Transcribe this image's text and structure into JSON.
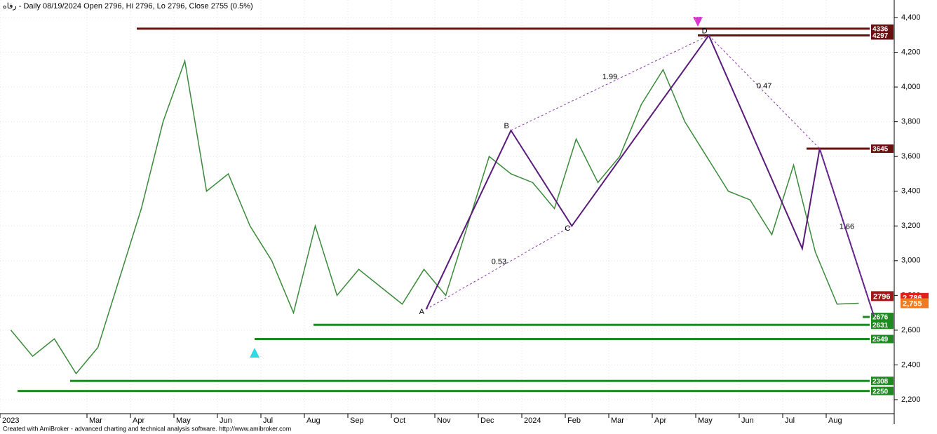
{
  "chart_data": {
    "type": "line",
    "title": "رفاه - Daily 08/19/2024 Open 2796, Hi 2796, Lo 2796, Close 2755 (0.5%)",
    "footer": "Created with AmiBroker - advanced charting and technical analysis software. http://www.amibroker.com",
    "categories": [
      "2023",
      null,
      null,
      null,
      "Mar",
      null,
      "Apr",
      null,
      "May",
      null,
      "Jun",
      null,
      "Jul",
      null,
      "Aug",
      null,
      "Sep",
      null,
      "Oct",
      null,
      "Nov",
      null,
      "Dec",
      null,
      "2024",
      null,
      "Feb",
      null,
      "Mar",
      null,
      "Apr",
      null,
      "May",
      null,
      "Jun",
      null,
      "Jul",
      null,
      "Aug",
      null
    ],
    "series": [
      {
        "name": "رفاه",
        "color": "#3a8a3a",
        "values": [
          2600,
          2450,
          2550,
          2350,
          2500,
          2900,
          3300,
          3800,
          4150,
          3400,
          3500,
          3200,
          3000,
          2700,
          3200,
          2800,
          2950,
          2850,
          2750,
          2950,
          2800,
          3200,
          3600,
          3500,
          3450,
          3300,
          3700,
          3450,
          3600,
          3900,
          4100,
          3800,
          3600,
          3400,
          3350,
          3150,
          3550,
          3050,
          2750,
          2755
        ]
      }
    ],
    "zigzag": {
      "color": "#5a1a7a",
      "x": [
        19.1,
        23,
        25.8,
        32.1,
        36.4,
        37.2,
        39.7
      ],
      "values": [
        2720,
        3750,
        3200,
        4297,
        3070,
        3645,
        2680
      ],
      "labels": [
        "A",
        "B",
        "C",
        "D"
      ]
    },
    "ratios": [
      "1.99",
      "0.53",
      "0.47",
      "1.66"
    ],
    "levels": [
      {
        "value": 4336,
        "color": "#6b1010"
      },
      {
        "value": 4297,
        "color": "#6b1010"
      },
      {
        "value": 3645,
        "color": "#6b1010"
      },
      {
        "value": 2676,
        "color": "#1f8a1f"
      },
      {
        "value": 2631,
        "color": "#1f8a1f"
      },
      {
        "value": 2549,
        "color": "#1f8a1f"
      },
      {
        "value": 2308,
        "color": "#1f8a1f"
      },
      {
        "value": 2250,
        "color": "#1f8a1f"
      }
    ],
    "price_labels": [
      {
        "value": 2786,
        "label": "2,786",
        "color": "#e0201a"
      },
      {
        "value": 2755,
        "label": "2,755",
        "color": "#f07a20"
      },
      {
        "value": 2796,
        "label": "2796",
        "color": "#a01818"
      }
    ],
    "ylim": [
      2200,
      4400
    ],
    "yticks": [
      {
        "value": 2200,
        "label": "2,200"
      },
      {
        "value": 2400,
        "label": "2,400"
      },
      {
        "value": 2600,
        "label": "2,600"
      },
      {
        "value": 2800,
        "label": "2,800"
      },
      {
        "value": 3000,
        "label": "3,000"
      },
      {
        "value": 3200,
        "label": "3,200"
      },
      {
        "value": 3400,
        "label": "3,400"
      },
      {
        "value": 3600,
        "label": "3,600"
      },
      {
        "value": 3800,
        "label": "3,800"
      },
      {
        "value": 4000,
        "label": "4,000"
      },
      {
        "value": 4200,
        "label": "4,200"
      },
      {
        "value": 4400,
        "label": "4,400"
      }
    ],
    "grid": true
  }
}
